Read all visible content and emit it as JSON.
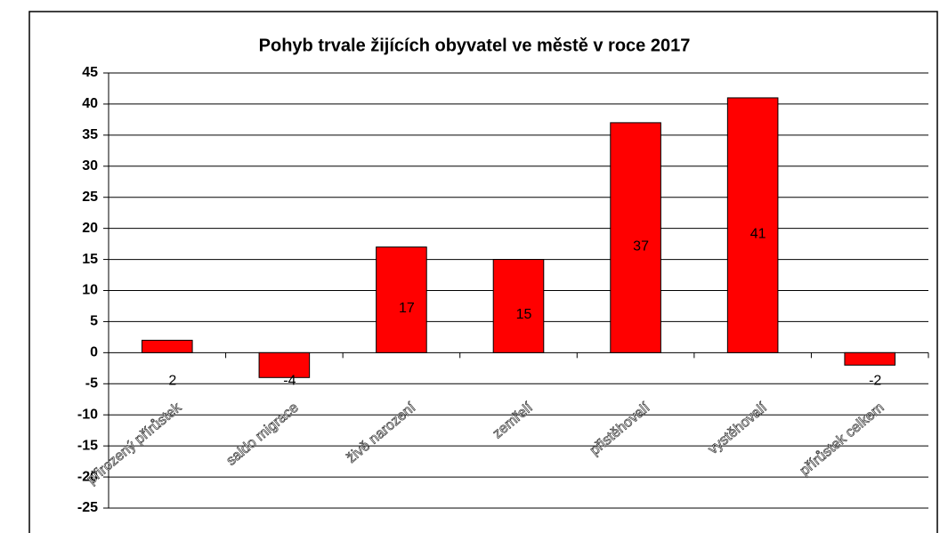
{
  "chart_data": {
    "type": "bar",
    "title": "Pohyb trvale žijících obyvatel ve městě v roce 2017",
    "categories": [
      "přirozený přírůstek",
      "saldo migrace",
      "živě narození",
      "zemřelí",
      "přistěhovalí",
      "vystěhovalí",
      "přírůstek celkem"
    ],
    "values": [
      2,
      -4,
      17,
      15,
      37,
      41,
      -2
    ],
    "color": "#ff0000",
    "ylim": [
      -25,
      45
    ],
    "yticks": [
      -25,
      -20,
      -15,
      -10,
      -5,
      0,
      5,
      10,
      15,
      20,
      25,
      30,
      35,
      40,
      45
    ],
    "grid": true
  }
}
